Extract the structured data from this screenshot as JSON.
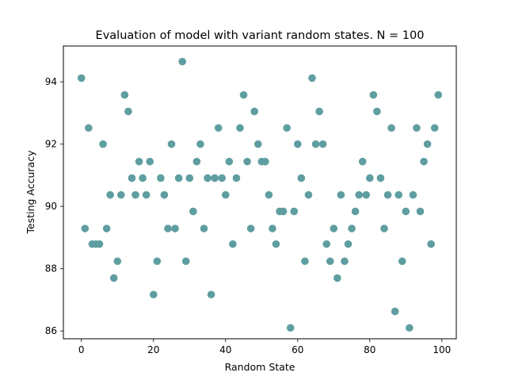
{
  "chart_data": {
    "type": "scatter",
    "title": "Evaluation of model with variant random states. N = 100",
    "xlabel": "Random State",
    "ylabel": "Testing Accuracy",
    "xlim": [
      -5,
      104
    ],
    "ylim": [
      85.75,
      95.15
    ],
    "xticks": [
      0,
      20,
      40,
      60,
      80,
      100
    ],
    "yticks": [
      86,
      88,
      90,
      92,
      94
    ],
    "grid": false,
    "marker_color": "#5f9ea0",
    "series": [
      {
        "x": [
          0,
          1,
          2,
          3,
          4,
          5,
          6,
          7,
          8,
          9,
          10,
          11,
          12,
          13,
          14,
          15,
          16,
          17,
          18,
          19,
          20,
          21,
          22,
          23,
          24,
          25,
          26,
          27,
          28,
          29,
          30,
          31,
          32,
          33,
          34,
          35,
          36,
          37,
          38,
          39,
          40,
          41,
          42,
          43,
          44,
          45,
          46,
          47,
          48,
          49,
          50,
          51,
          52,
          53,
          54,
          55,
          56,
          57,
          58,
          59,
          60,
          61,
          62,
          63,
          64,
          65,
          66,
          67,
          68,
          69,
          70,
          71,
          72,
          73,
          74,
          75,
          76,
          77,
          78,
          79,
          80,
          81,
          82,
          83,
          84,
          85,
          86,
          87,
          88,
          89,
          90,
          91,
          92,
          93,
          94,
          95,
          96,
          97,
          98,
          99
        ],
        "y": [
          94.12,
          89.29,
          92.52,
          88.79,
          88.79,
          88.79,
          92.0,
          89.29,
          90.37,
          87.7,
          88.24,
          90.37,
          93.58,
          93.05,
          90.91,
          90.37,
          91.44,
          90.91,
          90.37,
          91.44,
          87.17,
          88.24,
          90.91,
          90.37,
          89.29,
          92.0,
          89.29,
          90.91,
          94.65,
          88.24,
          90.91,
          89.84,
          91.44,
          92.0,
          89.29,
          90.91,
          87.17,
          90.91,
          92.52,
          90.91,
          90.37,
          91.44,
          88.79,
          90.91,
          92.52,
          93.58,
          91.44,
          89.29,
          93.05,
          92.0,
          91.44,
          91.44,
          90.37,
          89.29,
          88.79,
          89.84,
          89.84,
          92.52,
          86.1,
          89.84,
          92.0,
          90.91,
          88.24,
          90.37,
          94.12,
          92.0,
          93.05,
          92.0,
          88.79,
          88.24,
          89.29,
          87.7,
          90.37,
          88.24,
          88.79,
          89.29,
          89.84,
          90.37,
          91.44,
          90.37,
          90.91,
          93.58,
          93.05,
          90.91,
          89.29,
          90.37,
          92.52,
          86.63,
          90.37,
          88.24,
          89.84,
          86.1,
          90.37,
          92.52,
          89.84,
          91.44,
          92.0,
          88.79,
          92.52,
          93.58
        ]
      }
    ]
  }
}
